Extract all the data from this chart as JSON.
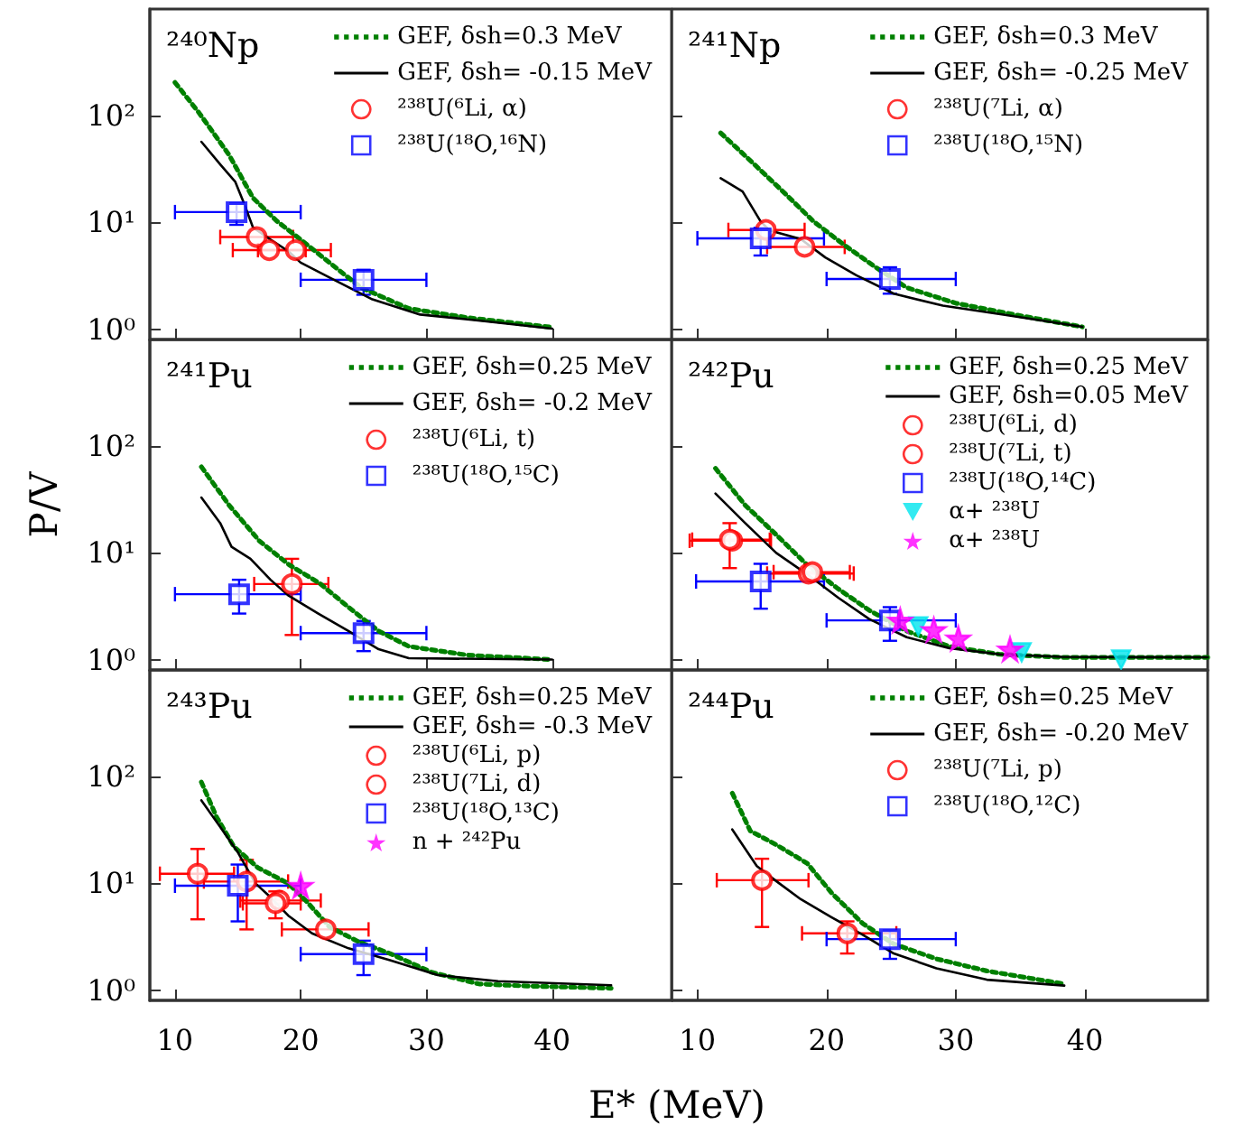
{
  "chart_data": [
    {
      "type": "scatter",
      "title": "²⁴⁰Np",
      "log": "y",
      "xlim": [
        8,
        49.5
      ],
      "xticks": [
        10,
        20,
        30,
        40
      ],
      "ylim": [
        0.8,
        1000
      ],
      "yticks": [
        {
          "value": 1,
          "label": "10⁰"
        },
        {
          "value": 10,
          "label": "10¹"
        },
        {
          "value": 100,
          "label": "10²"
        }
      ],
      "tick_labels": "y",
      "legend": "top right",
      "series": [
        {
          "name": "GEF, δsh=0.3 MeV",
          "type": "line",
          "color": "#008000",
          "marker": "none",
          "line_style": "dotted",
          "x": [
            10,
            11.9,
            14.3,
            16.2,
            18.1,
            20,
            22.4,
            24.8,
            28.6,
            33.3,
            40
          ],
          "values": [
            205,
            107,
            43,
            17,
            10.3,
            6.9,
            4.1,
            2.45,
            1.56,
            1.28,
            1.04
          ]
        },
        {
          "name": "GEF, δsh= -0.15 MeV",
          "type": "line",
          "color": "#000000",
          "marker": "none",
          "line_style": "solid",
          "x": [
            12.1,
            13.6,
            14.8,
            15.5,
            16.2,
            17.6,
            19,
            20,
            22.4,
            25.7,
            29.5,
            34.3,
            40
          ],
          "values": [
            57,
            35,
            24,
            15,
            9,
            6.9,
            5.4,
            4.2,
            3,
            1.9,
            1.37,
            1.2,
            1.01
          ]
        },
        {
          "name": "²³⁸U(⁶Li, α)",
          "color": "#ff0000",
          "marker": "circle",
          "x": [
            16.5,
            17.5,
            19.6
          ],
          "values": [
            7.3,
            5.5,
            5.5
          ],
          "xerrors": [
            [
              13.6,
              19.4
            ],
            [
              14.6,
              20.4
            ],
            [
              16.6,
              22.4
            ]
          ]
        },
        {
          "name": "²³⁸U(¹⁸O,¹⁶N)",
          "color": "#0000ff",
          "marker": "square",
          "x": [
            14.9,
            25
          ],
          "values": [
            12.5,
            2.9
          ],
          "xerrors": [
            [
              10,
              20
            ],
            [
              20,
              30
            ]
          ],
          "errors": [
            [
              9.5,
              15
            ],
            [
              2.1,
              3.6
            ]
          ]
        }
      ]
    },
    {
      "type": "scatter",
      "title": "²⁴¹Np",
      "log": "y",
      "xlim": [
        8,
        49.5
      ],
      "xticks": [
        10,
        20,
        30,
        40
      ],
      "ylim": [
        0.8,
        1000
      ],
      "yticks": [
        1,
        10,
        100
      ],
      "tick_labels": false,
      "legend": "top right",
      "series": [
        {
          "name": "GEF, δsh=0.3 MeV",
          "type": "line",
          "color": "#008000",
          "marker": "none",
          "line_style": "dotted",
          "x": [
            11.8,
            14.2,
            16.6,
            19,
            21.4,
            23.8,
            26.2,
            30,
            34.8,
            39.8
          ],
          "values": [
            69,
            37,
            19.6,
            10.2,
            6.1,
            3.8,
            2.45,
            1.75,
            1.35,
            1.05
          ]
        },
        {
          "name": "GEF, δsh= -0.25 MeV",
          "type": "line",
          "color": "#000000",
          "marker": "none",
          "line_style": "solid",
          "x": [
            11.8,
            13.5,
            14.9,
            15.6,
            18,
            19.9,
            22.3,
            25.2,
            29,
            33.8,
            39.8
          ],
          "values": [
            26,
            19.5,
            10.2,
            8.4,
            7,
            4.7,
            3.2,
            2.15,
            1.66,
            1.36,
            1.05
          ]
        },
        {
          "name": "²³⁸U(⁷Li, α)",
          "color": "#ff0000",
          "marker": "circle",
          "x": [
            15.3,
            18.3
          ],
          "values": [
            8.5,
            5.9
          ],
          "xerrors": [
            [
              12.4,
              18.3
            ],
            [
              15.4,
              21.4
            ]
          ]
        },
        {
          "name": "²³⁸U(¹⁸O,¹⁵N)",
          "color": "#0000ff",
          "marker": "square",
          "x": [
            14.9,
            24.9
          ],
          "values": [
            7.1,
            2.95
          ],
          "xerrors": [
            [
              10,
              19.8
            ],
            [
              20,
              30
            ]
          ],
          "errors": [
            [
              4.9,
              8.9
            ],
            [
              2.15,
              3.8
            ]
          ]
        }
      ]
    },
    {
      "type": "scatter",
      "title": "²⁴¹Pu",
      "ylabel": "P/V",
      "log": "y",
      "xlim": [
        8,
        49.5
      ],
      "xticks": [
        10,
        20,
        30,
        40
      ],
      "ylim": [
        0.8,
        1000
      ],
      "yticks": [
        {
          "value": 1,
          "label": "10⁰"
        },
        {
          "value": 10,
          "label": "10¹"
        },
        {
          "value": 100,
          "label": "10²"
        }
      ],
      "tick_labels": "y",
      "legend": "top right",
      "series": [
        {
          "name": "GEF, δsh=0.25 MeV",
          "type": "line",
          "color": "#008000",
          "marker": "none",
          "line_style": "dotted",
          "x": [
            12.1,
            14.3,
            16.7,
            19.1,
            21.5,
            23.8,
            26.2,
            28.6,
            33.3,
            40
          ],
          "values": [
            64,
            28,
            13,
            7.7,
            5.2,
            3.1,
            1.85,
            1.33,
            1.1,
            1
          ]
        },
        {
          "name": "GEF, δsh= -0.2 MeV",
          "type": "line",
          "color": "#000000",
          "marker": "none",
          "line_style": "solid",
          "x": [
            12.1,
            13.6,
            14.5,
            16,
            17.6,
            19,
            21.4,
            23.8,
            26.2,
            28.6,
            40
          ],
          "values": [
            33,
            19,
            11.4,
            8.8,
            5.6,
            4,
            2.7,
            1.85,
            1.25,
            1.03,
            1
          ]
        },
        {
          "name": "²³⁸U(⁶Li, t)",
          "color": "#ff0000",
          "marker": "circle",
          "x": [
            19.3
          ],
          "values": [
            5.1
          ],
          "xerrors": [
            [
              16.3,
              22.2
            ]
          ],
          "errors": [
            [
              1.7,
              8.8
            ]
          ]
        },
        {
          "name": "²³⁸U(¹⁸O,¹⁵C)",
          "color": "#0000ff",
          "marker": "square",
          "x": [
            15.1,
            25
          ],
          "values": [
            4.1,
            1.77
          ],
          "xerrors": [
            [
              10,
              20
            ],
            [
              20,
              30
            ]
          ],
          "errors": [
            [
              2.7,
              5.6
            ],
            [
              1.2,
              2.3
            ]
          ]
        }
      ]
    },
    {
      "type": "scatter",
      "title": "²⁴²Pu",
      "log": "y",
      "xlim": [
        8,
        49.5
      ],
      "xticks": [
        10,
        20,
        30,
        40
      ],
      "ylim": [
        0.8,
        1000
      ],
      "yticks": [
        1,
        10,
        100
      ],
      "tick_labels": false,
      "legend": "top right",
      "series": [
        {
          "name": "GEF, δsh=0.25 MeV",
          "type": "line",
          "color": "#008000",
          "marker": "none",
          "line_style": "dotted",
          "x": [
            11.4,
            13.7,
            16.1,
            18.5,
            20.9,
            23.3,
            26.2,
            29.5,
            33.4,
            38.2,
            49.5
          ],
          "values": [
            62,
            28,
            14.8,
            7.7,
            4.6,
            2.9,
            1.85,
            1.33,
            1.12,
            1.05,
            1.05
          ]
        },
        {
          "name": "GEF, δsh=0.05 MeV",
          "type": "line",
          "color": "#000000",
          "marker": "none",
          "line_style": "solid",
          "x": [
            11.4,
            13.7,
            16.1,
            18.5,
            20.9,
            23.3,
            26.2,
            29.5,
            33.4,
            38.2,
            49.5
          ],
          "values": [
            36,
            19,
            10,
            6.3,
            3.8,
            2.4,
            1.62,
            1.28,
            1.12,
            1.06,
            1.05
          ]
        },
        {
          "name": "²³⁸U(⁶Li, d)",
          "color": "#ff0000",
          "marker": "circle",
          "x": [
            12.7,
            18.6
          ],
          "values": [
            13,
            6.4
          ],
          "xerrors": [
            [
              9.4,
              15.7
            ],
            [
              15.4,
              22.1
            ]
          ]
        },
        {
          "name": "²³⁸U(⁷Li, t)",
          "color": "#ff0000",
          "marker": "circle",
          "x": [
            12.5,
            18.9
          ],
          "values": [
            13.3,
            6.6
          ],
          "xerrors": [
            [
              9.6,
              15.6
            ],
            [
              15.9,
              21.8
            ]
          ],
          "errors": [
            [
              7.2,
              19
            ],
            null
          ]
        },
        {
          "name": "²³⁸U(¹⁸O,¹⁴C)",
          "color": "#0000ff",
          "marker": "square",
          "x": [
            14.9,
            24.9
          ],
          "values": [
            5.4,
            2.33
          ],
          "xerrors": [
            [
              9.9,
              19.8
            ],
            [
              20,
              30
            ]
          ],
          "errors": [
            [
              3,
              7.9
            ],
            [
              1.5,
              3.1
            ]
          ]
        },
        {
          "name": "α+ ²³⁸U",
          "color": "#00e5ee",
          "marker": "triangle",
          "x": [
            27.1,
            35.1,
            42.8
          ],
          "values": [
            2.05,
            1.17,
            1
          ]
        },
        {
          "name": "α+ ²³⁸U",
          "color": "#ff00ff",
          "marker": "star",
          "x": [
            25.7,
            28.3,
            30.2,
            34.2
          ],
          "values": [
            2.33,
            1.9,
            1.58,
            1.25
          ]
        }
      ]
    },
    {
      "type": "scatter",
      "title": "²⁴³Pu",
      "xlabel": "E* (MeV)",
      "log": "y",
      "xlim": [
        8,
        49.5
      ],
      "xticks": [
        10,
        20,
        30,
        40
      ],
      "ylim": [
        0.8,
        1000
      ],
      "yticks": [
        {
          "value": 1,
          "label": "10⁰"
        },
        {
          "value": 10,
          "label": "10¹"
        },
        {
          "value": 100,
          "label": "10²"
        }
      ],
      "legend": "top right",
      "series": [
        {
          "name": "GEF, δsh=0.25 MeV",
          "type": "line",
          "color": "#008000",
          "marker": "none",
          "line_style": "dotted",
          "x": [
            12.1,
            13.3,
            14.7,
            16.6,
            19,
            20.4,
            22.3,
            24.7,
            27.1,
            30.4,
            34.2,
            38,
            44.7
          ],
          "values": [
            89,
            42,
            22,
            14,
            10,
            6.9,
            3.9,
            2.8,
            2.2,
            1.47,
            1.14,
            1.09,
            1.04
          ]
        },
        {
          "name": "GEF, δsh= -0.3 MeV",
          "type": "line",
          "color": "#000000",
          "marker": "none",
          "line_style": "solid",
          "x": [
            12.1,
            13.5,
            15,
            16.4,
            17.6,
            19,
            20.9,
            23.8,
            27.1,
            30.9,
            35.7,
            44.7
          ],
          "values": [
            60,
            35,
            19.5,
            10,
            7.4,
            5,
            3.4,
            2.46,
            1.9,
            1.38,
            1.21,
            1.11
          ]
        },
        {
          "name": "²³⁸U(⁶Li, p)",
          "color": "#ff0000",
          "marker": "circle",
          "x": [
            15.7,
            18.3,
            22
          ],
          "values": [
            10.4,
            6.9,
            3.7
          ],
          "xerrors": [
            [
              12.3,
              19
            ],
            [
              15.2,
              21.6
            ],
            [
              18.5,
              25.4
            ]
          ],
          "errors": [
            [
              3.7,
              16.6
            ],
            null,
            null
          ]
        },
        {
          "name": "²³⁸U(⁷Li, d)",
          "color": "#ff0000",
          "marker": "circle",
          "x": [
            11.8,
            18
          ],
          "values": [
            12.3,
            6.5
          ],
          "xerrors": [
            [
              8.8,
              14.7
            ],
            [
              15.4,
              20
            ]
          ],
          "errors": [
            [
              4.6,
              21
            ],
            [
              4.7,
              8.4
            ]
          ]
        },
        {
          "name": "²³⁸U(¹⁸O,¹³C)",
          "color": "#0000ff",
          "marker": "square",
          "x": [
            15,
            25
          ],
          "values": [
            9.5,
            2.17
          ],
          "xerrors": [
            [
              10,
              20
            ],
            [
              20,
              30
            ]
          ],
          "errors": [
            [
              4.4,
              15
            ],
            [
              1.38,
              2.9
            ]
          ]
        },
        {
          "name": "n + ²⁴²Pu",
          "color": "#ff00ff",
          "marker": "star",
          "x": [
            20
          ],
          "values": [
            9.5
          ]
        }
      ]
    },
    {
      "type": "scatter",
      "title": "²⁴⁴Pu",
      "log": "y",
      "xlim": [
        8,
        49.5
      ],
      "xticks": [
        10,
        20,
        30,
        40
      ],
      "ylim": [
        0.8,
        1000
      ],
      "yticks": [
        1,
        10,
        100
      ],
      "tick_labels": "x",
      "legend": "top right",
      "series": [
        {
          "name": "GEF, δsh=0.25 MeV",
          "type": "line",
          "color": "#008000",
          "marker": "none",
          "line_style": "dotted",
          "x": [
            12.7,
            14.1,
            16.1,
            18.5,
            20.4,
            22.8,
            25.2,
            28.5,
            32.4,
            38.4
          ],
          "values": [
            70,
            31,
            23,
            15.4,
            8.1,
            4.2,
            2.7,
            1.96,
            1.51,
            1.14
          ]
        },
        {
          "name": "GEF, δsh= -0.20 MeV",
          "type": "line",
          "color": "#000000",
          "marker": "none",
          "line_style": "solid",
          "x": [
            12.7,
            14.6,
            16.1,
            18,
            20.4,
            22.8,
            25.2,
            28.5,
            32.4,
            38.4
          ],
          "values": [
            32,
            14.5,
            10.5,
            7.1,
            4.8,
            3.3,
            2.2,
            1.6,
            1.25,
            1.1
          ]
        },
        {
          "name": "²³⁸U(⁷Li, p)",
          "color": "#ff0000",
          "marker": "circle",
          "x": [
            15,
            21.6
          ],
          "values": [
            10.7,
            3.4
          ],
          "xerrors": [
            [
              11.5,
              18.6
            ],
            [
              18.1,
              25.4
            ]
          ],
          "errors": [
            [
              3.9,
              17
            ],
            [
              2.2,
              4.4
            ]
          ]
        },
        {
          "name": "²³⁸U(¹⁸O,¹²C)",
          "color": "#0000ff",
          "marker": "square",
          "x": [
            24.9
          ],
          "values": [
            3
          ],
          "xerrors": [
            [
              20,
              30
            ]
          ],
          "errors": [
            [
              1.96,
              3.6
            ]
          ]
        }
      ]
    }
  ]
}
